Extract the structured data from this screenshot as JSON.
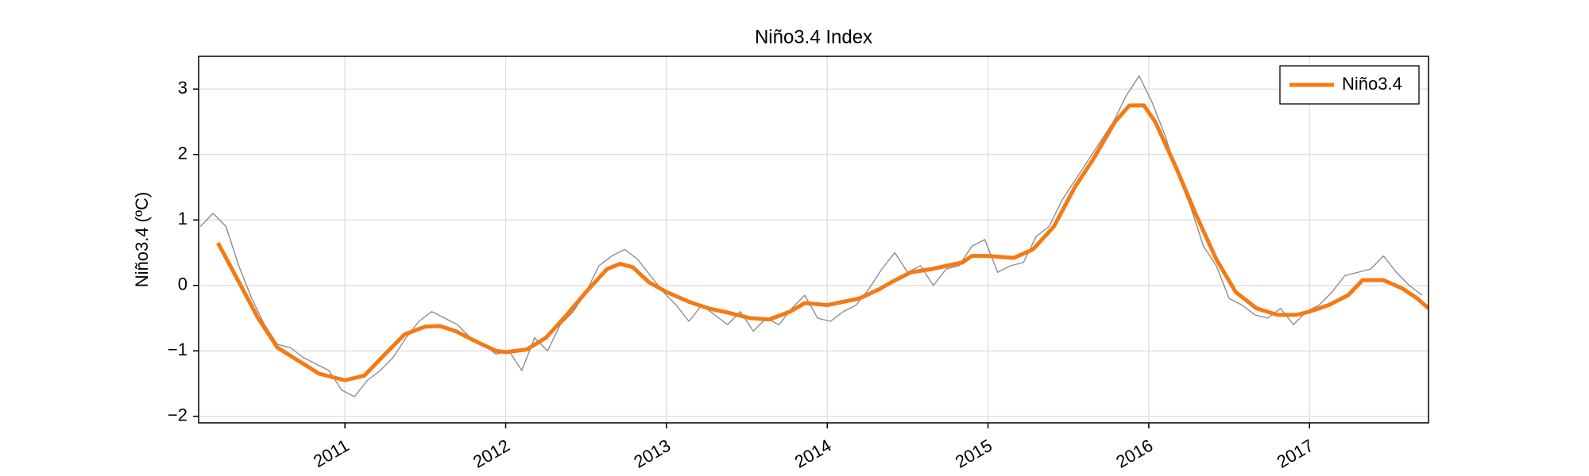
{
  "chart_data": {
    "type": "line",
    "title": "Niño3.4 Index",
    "ylabel": "Niño3.4 (ºC)",
    "xlim": [
      2010.09,
      2017.74
    ],
    "xticks": [
      2011,
      2012,
      2013,
      2014,
      2015,
      2016,
      2017
    ],
    "ylim": [
      -2.1,
      3.5
    ],
    "yticks": [
      {
        "value": -2,
        "label": "−2"
      },
      {
        "value": -1,
        "label": "−1"
      },
      0,
      1,
      2,
      3
    ],
    "grid": true,
    "legend": "upper right",
    "series": [
      {
        "color": "#8c8c8c",
        "x": [
          2010.1,
          2010.18,
          2010.26,
          2010.34,
          2010.42,
          2010.5,
          2010.58,
          2010.66,
          2010.74,
          2010.82,
          2010.9,
          2010.98,
          2011.06,
          2011.14,
          2011.22,
          2011.3,
          2011.38,
          2011.46,
          2011.54,
          2011.62,
          2011.7,
          2011.78,
          2011.86,
          2011.94,
          2012.02,
          2012.1,
          2012.18,
          2012.26,
          2012.34,
          2012.42,
          2012.5,
          2012.58,
          2012.66,
          2012.74,
          2012.82,
          2012.9,
          2012.98,
          2013.06,
          2013.14,
          2013.22,
          2013.3,
          2013.38,
          2013.46,
          2013.54,
          2013.62,
          2013.7,
          2013.78,
          2013.86,
          2013.94,
          2014.02,
          2014.1,
          2014.18,
          2014.26,
          2014.34,
          2014.42,
          2014.5,
          2014.58,
          2014.66,
          2014.74,
          2014.82,
          2014.9,
          2014.98,
          2015.06,
          2015.14,
          2015.22,
          2015.3,
          2015.38,
          2015.46,
          2015.54,
          2015.62,
          2015.7,
          2015.78,
          2015.86,
          2015.94,
          2016.02,
          2016.1,
          2016.18,
          2016.26,
          2016.34,
          2016.42,
          2016.5,
          2016.58,
          2016.66,
          2016.74,
          2016.82,
          2016.9,
          2016.98,
          2017.06,
          2017.14,
          2017.22,
          2017.3,
          2017.38,
          2017.46,
          2017.54,
          2017.62,
          2017.7
        ],
        "values": [
          0.9,
          1.1,
          0.9,
          0.3,
          -0.2,
          -0.6,
          -0.9,
          -0.95,
          -1.1,
          -1.2,
          -1.3,
          -1.6,
          -1.7,
          -1.45,
          -1.3,
          -1.1,
          -0.8,
          -0.55,
          -0.4,
          -0.5,
          -0.6,
          -0.8,
          -0.9,
          -1.05,
          -1.0,
          -1.3,
          -0.8,
          -1.0,
          -0.6,
          -0.4,
          -0.1,
          0.3,
          0.45,
          0.55,
          0.4,
          0.15,
          -0.1,
          -0.3,
          -0.55,
          -0.3,
          -0.45,
          -0.6,
          -0.4,
          -0.7,
          -0.5,
          -0.6,
          -0.35,
          -0.15,
          -0.5,
          -0.55,
          -0.4,
          -0.3,
          -0.05,
          0.25,
          0.5,
          0.2,
          0.3,
          0.0,
          0.25,
          0.3,
          0.6,
          0.7,
          0.2,
          0.3,
          0.35,
          0.75,
          0.9,
          1.3,
          1.6,
          1.9,
          2.2,
          2.5,
          2.9,
          3.2,
          2.8,
          2.3,
          1.7,
          1.2,
          0.6,
          0.3,
          -0.2,
          -0.3,
          -0.45,
          -0.5,
          -0.35,
          -0.6,
          -0.4,
          -0.3,
          -0.1,
          0.15,
          0.2,
          0.25,
          0.45,
          0.2,
          0.0,
          -0.15
        ]
      },
      {
        "name": "Niño3.4",
        "color": "#f57a14",
        "x": [
          2010.21,
          2010.33,
          2010.46,
          2010.58,
          2010.71,
          2010.84,
          2011.0,
          2011.12,
          2011.25,
          2011.37,
          2011.5,
          2011.59,
          2011.69,
          2011.81,
          2011.94,
          2012.0,
          2012.13,
          2012.25,
          2012.38,
          2012.5,
          2012.63,
          2012.71,
          2012.79,
          2012.89,
          2013.0,
          2013.14,
          2013.26,
          2013.39,
          2013.52,
          2013.64,
          2013.77,
          2013.86,
          2014.0,
          2014.2,
          2014.33,
          2014.4,
          2014.52,
          2014.65,
          2014.84,
          2014.9,
          2015.0,
          2015.16,
          2015.28,
          2015.41,
          2015.54,
          2015.66,
          2015.79,
          2015.88,
          2015.97,
          2016.04,
          2016.17,
          2016.29,
          2016.42,
          2016.54,
          2016.67,
          2016.8,
          2016.92,
          2017.0,
          2017.12,
          2017.24,
          2017.33,
          2017.46,
          2017.58,
          2017.67,
          2017.74
        ],
        "values": [
          0.65,
          0.1,
          -0.5,
          -0.95,
          -1.15,
          -1.35,
          -1.45,
          -1.38,
          -1.05,
          -0.75,
          -0.63,
          -0.62,
          -0.7,
          -0.85,
          -1.0,
          -1.02,
          -0.98,
          -0.8,
          -0.45,
          -0.1,
          0.25,
          0.33,
          0.28,
          0.05,
          -0.1,
          -0.25,
          -0.35,
          -0.42,
          -0.5,
          -0.52,
          -0.4,
          -0.27,
          -0.3,
          -0.2,
          -0.05,
          0.05,
          0.2,
          0.25,
          0.35,
          0.45,
          0.45,
          0.42,
          0.55,
          0.9,
          1.5,
          1.95,
          2.5,
          2.75,
          2.75,
          2.5,
          1.8,
          1.1,
          0.4,
          -0.1,
          -0.35,
          -0.45,
          -0.45,
          -0.4,
          -0.3,
          -0.15,
          0.08,
          0.08,
          -0.05,
          -0.2,
          -0.35
        ]
      }
    ]
  }
}
